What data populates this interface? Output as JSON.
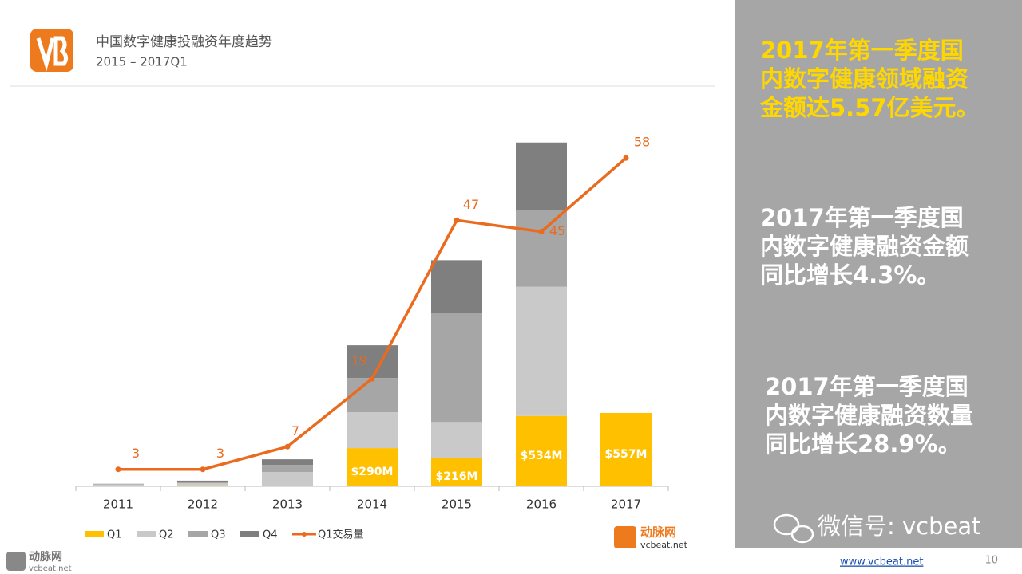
{
  "header": {
    "title": "中国数字健康投融资年度趋势",
    "subtitle": "2015 – 2017Q1"
  },
  "chart_data": {
    "type": "bar",
    "stacked": true,
    "categories": [
      "2011",
      "2012",
      "2013",
      "2014",
      "2015",
      "2016",
      "2017"
    ],
    "series": [
      {
        "name": "Q1",
        "color": "#FFC000",
        "values": [
          5,
          8,
          5,
          290,
          216,
          534,
          557
        ],
        "value_labels": [
          null,
          null,
          null,
          "$290M",
          "$216M",
          "$534M",
          "$557M"
        ]
      },
      {
        "name": "Q2",
        "color": "#C9C9C9",
        "values": [
          10,
          15,
          103,
          272,
          272,
          980,
          null
        ]
      },
      {
        "name": "Q3",
        "color": "#A6A6A6",
        "values": [
          5,
          12,
          55,
          260,
          829,
          581,
          null
        ]
      },
      {
        "name": "Q4",
        "color": "#7F7F7F",
        "values": [
          0,
          8,
          42,
          248,
          399,
          514,
          null
        ]
      },
      {
        "name": "Q1交易量",
        "color": "#EA6A1E",
        "type": "line",
        "values": [
          3,
          3,
          7,
          19,
          47,
          45,
          58
        ]
      }
    ],
    "legend": "bottom-left"
  },
  "chart_logo": {
    "name": "动脉网",
    "site": "vcbeat.net"
  },
  "panel": {
    "notes": [
      {
        "lines": [
          "2017年第一季度国",
          "内数字健康领域融资",
          "金额达5.57亿美元。"
        ],
        "color": "#FFD700"
      },
      {
        "lines": [
          "2017年第一季度国",
          "内数字健康融资金额",
          "同比增长4.3%。"
        ],
        "color": "#FFFFFF"
      },
      {
        "lines": [
          "2017年第一季度国",
          "内数字健康融资数量",
          "同比增长28.9%。"
        ],
        "color": "#FFFFFF"
      }
    ],
    "wechat": "微信号: vcbeat"
  },
  "footer": {
    "logo_name": "动脉网",
    "logo_site": "vcbeat.net",
    "url": "www.vcbeat.net",
    "page": "10"
  }
}
